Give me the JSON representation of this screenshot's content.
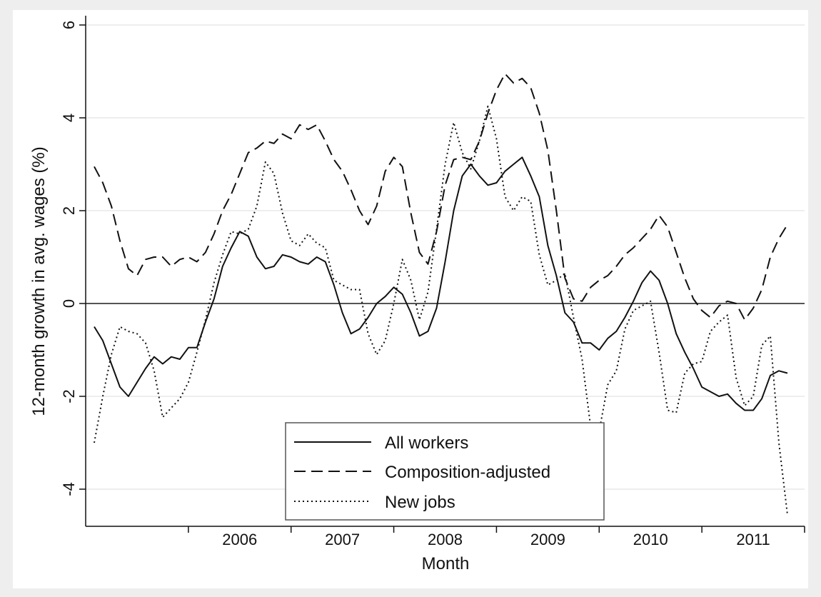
{
  "chart_data": {
    "type": "line",
    "xlabel": "Month",
    "ylabel": "12-month growth in avg. wages (%)",
    "ylim": [
      -4.8,
      6.2
    ],
    "yticks": [
      6,
      4,
      2,
      0,
      -2,
      -4
    ],
    "xlim": [
      "2005-01",
      "2012-01"
    ],
    "x_tick_labels": [
      "2006",
      "2007",
      "2008",
      "2009",
      "2010",
      "2011"
    ],
    "reference_line_y": 0,
    "grid": "horizontal",
    "legend_position": "bottom-center",
    "x_start": "2005-02",
    "series": [
      {
        "name": "All workers",
        "style": "solid",
        "values": [
          -0.5,
          -0.8,
          -1.3,
          -1.8,
          -2.0,
          -1.7,
          -1.4,
          -1.15,
          -1.3,
          -1.15,
          -1.2,
          -0.95,
          -0.95,
          -0.4,
          0.1,
          0.8,
          1.2,
          1.55,
          1.45,
          1.0,
          0.75,
          0.8,
          1.05,
          1.0,
          0.9,
          0.85,
          1.0,
          0.9,
          0.4,
          -0.2,
          -0.65,
          -0.55,
          -0.3,
          0.0,
          0.15,
          0.35,
          0.2,
          -0.2,
          -0.7,
          -0.6,
          -0.1,
          0.9,
          2.0,
          2.75,
          3.0,
          2.75,
          2.55,
          2.6,
          2.85,
          3.0,
          3.15,
          2.75,
          2.3,
          1.25,
          0.6,
          -0.2,
          -0.4,
          -0.85,
          -0.85,
          -1.0,
          -0.75,
          -0.6,
          -0.3,
          0.05,
          0.45,
          0.7,
          0.5,
          -0.0,
          -0.65,
          -1.05,
          -1.4,
          -1.8,
          -1.9,
          -2.0,
          -1.95,
          -2.15,
          -2.3,
          -2.3,
          -2.05,
          -1.55,
          -1.45,
          -1.5
        ]
      },
      {
        "name": "Composition-adjusted",
        "style": "dashed",
        "values": [
          2.95,
          2.6,
          2.1,
          1.35,
          0.75,
          0.6,
          0.95,
          1.0,
          1.0,
          0.8,
          0.95,
          1.0,
          0.9,
          1.1,
          1.5,
          2.0,
          2.35,
          2.8,
          3.25,
          3.35,
          3.5,
          3.45,
          3.65,
          3.55,
          3.85,
          3.75,
          3.85,
          3.5,
          3.1,
          2.85,
          2.45,
          2.0,
          1.7,
          2.1,
          2.85,
          3.15,
          2.95,
          1.95,
          1.1,
          0.85,
          1.55,
          2.55,
          3.1,
          3.15,
          3.1,
          3.5,
          4.1,
          4.6,
          4.95,
          4.75,
          4.85,
          4.65,
          4.1,
          3.3,
          2.0,
          0.55,
          0.1,
          0.05,
          0.35,
          0.5,
          0.6,
          0.8,
          1.05,
          1.2,
          1.4,
          1.6,
          1.9,
          1.65,
          1.1,
          0.55,
          0.1,
          -0.15,
          -0.3,
          -0.05,
          0.05,
          0.0,
          -0.35,
          -0.1,
          0.3,
          1.0,
          1.4,
          1.7
        ]
      },
      {
        "name": "New jobs",
        "style": "dotted",
        "values": [
          -3.0,
          -2.0,
          -1.1,
          -0.5,
          -0.6,
          -0.65,
          -0.85,
          -1.45,
          -2.45,
          -2.25,
          -2.05,
          -1.7,
          -1.05,
          -0.35,
          0.45,
          1.05,
          1.55,
          1.5,
          1.6,
          2.1,
          3.05,
          2.8,
          1.95,
          1.35,
          1.25,
          1.5,
          1.3,
          1.2,
          0.5,
          0.4,
          0.3,
          0.3,
          -0.65,
          -1.1,
          -0.8,
          0.0,
          0.95,
          0.5,
          -0.35,
          0.25,
          1.6,
          3.0,
          3.9,
          3.25,
          2.9,
          3.5,
          4.25,
          3.55,
          2.3,
          2.0,
          2.3,
          2.2,
          1.05,
          0.4,
          0.5,
          0.65,
          -0.3,
          -1.2,
          -2.65,
          -2.75,
          -1.75,
          -1.45,
          -0.55,
          -0.15,
          -0.05,
          0.05,
          -1.05,
          -2.3,
          -2.35,
          -1.5,
          -1.3,
          -1.25,
          -0.6,
          -0.4,
          -0.25,
          -1.6,
          -2.2,
          -2.0,
          -0.9,
          -0.7,
          -3.0,
          -4.55
        ]
      }
    ]
  }
}
